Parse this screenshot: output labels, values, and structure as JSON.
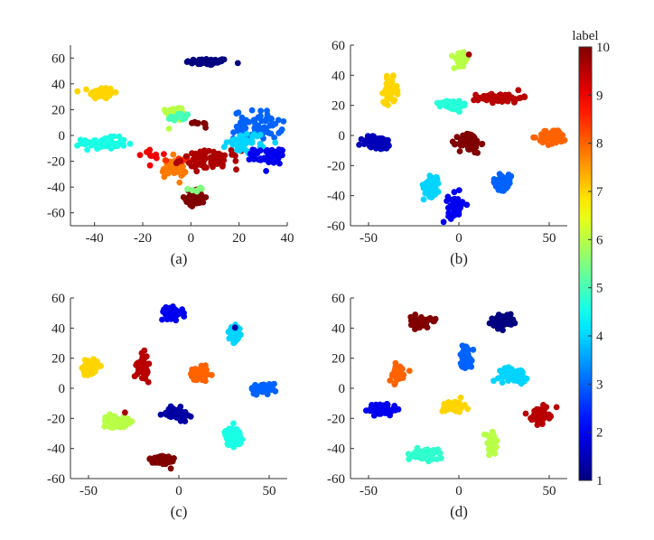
{
  "chart_data": [
    {
      "type": "scatter",
      "caption": "(a)",
      "xlim": [
        -50,
        40
      ],
      "ylim": [
        -70,
        70
      ],
      "xticks": [
        -40,
        -20,
        0,
        20,
        40
      ],
      "yticks": [
        -60,
        -40,
        -20,
        0,
        20,
        40,
        60
      ],
      "clusters": [
        {
          "label": 1,
          "x": 7,
          "y": 57,
          "sx": 4.5,
          "sy": 1.3,
          "n": 70
        },
        {
          "label": 7,
          "x": -37,
          "y": 33,
          "sx": 2.5,
          "sy": 2.4,
          "n": 70
        },
        {
          "label": 6,
          "x": -6,
          "y": 17,
          "sx": 2.0,
          "sy": 2.8,
          "n": 50
        },
        {
          "label": 5,
          "x": -5,
          "y": 14,
          "sx": 2.2,
          "sy": 1.8,
          "n": 25
        },
        {
          "label": 4.6,
          "x": -36,
          "y": -6,
          "sx": 4.5,
          "sy": 2.2,
          "n": 70
        },
        {
          "label": 10,
          "x": 2,
          "y": -48,
          "sx": 2.0,
          "sy": 3.0,
          "n": 60
        },
        {
          "label": 5.5,
          "x": 1,
          "y": -42,
          "sx": 1.5,
          "sy": 0.8,
          "n": 6
        },
        {
          "label": 7.8,
          "x": -7,
          "y": -25,
          "sx": 2.5,
          "sy": 4.0,
          "n": 55
        },
        {
          "label": 8.5,
          "x": -2,
          "y": -19,
          "sx": 4.0,
          "sy": 0.8,
          "n": 20
        },
        {
          "label": 9.6,
          "x": 8,
          "y": -19,
          "sx": 6.0,
          "sy": 3.5,
          "n": 75
        },
        {
          "label": 9.0,
          "x": -17,
          "y": -15,
          "sx": 3.0,
          "sy": 3.0,
          "n": 10
        },
        {
          "label": 3,
          "x": 28,
          "y": 8,
          "sx": 5.0,
          "sy": 5.5,
          "n": 70
        },
        {
          "label": 4,
          "x": 23,
          "y": -5,
          "sx": 4.0,
          "sy": 4.0,
          "n": 45
        },
        {
          "label": 2,
          "x": 33,
          "y": -16,
          "sx": 3.5,
          "sy": 3.0,
          "n": 55
        },
        {
          "label": 10,
          "x": 2,
          "y": 9,
          "sx": 3.0,
          "sy": 1.0,
          "n": 10
        }
      ]
    },
    {
      "type": "scatter",
      "caption": "(b)",
      "xlim": [
        -60,
        60
      ],
      "ylim": [
        -60,
        60
      ],
      "xticks": [
        -50,
        0,
        50
      ],
      "yticks": [
        -60,
        -40,
        -20,
        0,
        20,
        40,
        60
      ],
      "clusters": [
        {
          "label": 6,
          "x": 1,
          "y": 50,
          "sx": 2.0,
          "sy": 2.5,
          "n": 55
        },
        {
          "label": 9.7,
          "x": 5,
          "y": 54,
          "sx": 0.3,
          "sy": 0.3,
          "n": 1
        },
        {
          "label": 7,
          "x": -38,
          "y": 30,
          "sx": 1.8,
          "sy": 4.0,
          "n": 60
        },
        {
          "label": 4.7,
          "x": -3,
          "y": 20,
          "sx": 3.5,
          "sy": 1.6,
          "n": 60
        },
        {
          "label": 9.5,
          "x": 23,
          "y": 25,
          "sx": 6.0,
          "sy": 1.5,
          "n": 70
        },
        {
          "label": 10,
          "x": 6,
          "y": -5,
          "sx": 3.0,
          "sy": 3.5,
          "n": 65
        },
        {
          "label": 1.5,
          "x": -45,
          "y": -5,
          "sx": 4.5,
          "sy": 2.2,
          "n": 65
        },
        {
          "label": 8,
          "x": 52,
          "y": -1,
          "sx": 4.0,
          "sy": 2.5,
          "n": 60
        },
        {
          "label": 4,
          "x": -15,
          "y": -33,
          "sx": 2.2,
          "sy": 4.0,
          "n": 50
        },
        {
          "label": 3,
          "x": 24,
          "y": -31,
          "sx": 2.5,
          "sy": 2.5,
          "n": 60
        },
        {
          "label": 2,
          "x": -2,
          "y": -48,
          "sx": 2.0,
          "sy": 4.5,
          "n": 55
        }
      ]
    },
    {
      "type": "scatter",
      "caption": "(c)",
      "xlim": [
        -60,
        60
      ],
      "ylim": [
        -60,
        60
      ],
      "xticks": [
        -50,
        0,
        50
      ],
      "yticks": [
        -60,
        -40,
        -20,
        0,
        20,
        40,
        60
      ],
      "clusters": [
        {
          "label": 2,
          "x": -4,
          "y": 50,
          "sx": 3.0,
          "sy": 1.8,
          "n": 60
        },
        {
          "label": 4,
          "x": 31,
          "y": 36,
          "sx": 1.6,
          "sy": 2.5,
          "n": 55
        },
        {
          "label": 1.3,
          "x": 31,
          "y": 40,
          "sx": 0.3,
          "sy": 0.3,
          "n": 1
        },
        {
          "label": 7,
          "x": -49,
          "y": 14,
          "sx": 2.3,
          "sy": 3.0,
          "n": 60
        },
        {
          "label": 9.5,
          "x": -20,
          "y": 15,
          "sx": 1.5,
          "sy": 3.8,
          "n": 60
        },
        {
          "label": 8,
          "x": 11,
          "y": 9,
          "sx": 2.5,
          "sy": 2.5,
          "n": 60
        },
        {
          "label": 3,
          "x": 47,
          "y": 0,
          "sx": 3.5,
          "sy": 1.6,
          "n": 55
        },
        {
          "label": 6,
          "x": -35,
          "y": -22,
          "sx": 3.5,
          "sy": 2.0,
          "n": 60
        },
        {
          "label": 9.7,
          "x": -30,
          "y": -16,
          "sx": 0.3,
          "sy": 0.3,
          "n": 1
        },
        {
          "label": 1.3,
          "x": -1,
          "y": -17,
          "sx": 3.0,
          "sy": 2.0,
          "n": 60
        },
        {
          "label": 4.6,
          "x": 30,
          "y": -32,
          "sx": 2.3,
          "sy": 3.0,
          "n": 60
        },
        {
          "label": 10,
          "x": -9,
          "y": -48,
          "sx": 3.5,
          "sy": 2.0,
          "n": 60
        }
      ]
    },
    {
      "type": "scatter",
      "caption": "(d)",
      "xlim": [
        -60,
        60
      ],
      "ylim": [
        -60,
        60
      ],
      "xticks": [
        -50,
        0,
        50
      ],
      "yticks": [
        -60,
        -40,
        -20,
        0,
        20,
        40,
        60
      ],
      "clusters": [
        {
          "label": 10,
          "x": -21,
          "y": 44,
          "sx": 2.8,
          "sy": 1.8,
          "n": 60
        },
        {
          "label": 1,
          "x": 24,
          "y": 45,
          "sx": 3.0,
          "sy": 2.2,
          "n": 60
        },
        {
          "label": 3,
          "x": 4,
          "y": 21,
          "sx": 1.6,
          "sy": 4.0,
          "n": 60
        },
        {
          "label": 8,
          "x": -34,
          "y": 10,
          "sx": 2.4,
          "sy": 2.8,
          "n": 60
        },
        {
          "label": 4,
          "x": 30,
          "y": 9,
          "sx": 4.0,
          "sy": 2.3,
          "n": 55
        },
        {
          "label": 2,
          "x": -42,
          "y": -14,
          "sx": 4.0,
          "sy": 2.0,
          "n": 60
        },
        {
          "label": 7,
          "x": -3,
          "y": -12,
          "sx": 3.0,
          "sy": 2.0,
          "n": 60
        },
        {
          "label": 9.5,
          "x": 45,
          "y": -18,
          "sx": 2.5,
          "sy": 2.5,
          "n": 60
        },
        {
          "label": 6,
          "x": 18,
          "y": -37,
          "sx": 1.8,
          "sy": 4.0,
          "n": 55
        },
        {
          "label": 4.8,
          "x": -18,
          "y": -44,
          "sx": 3.2,
          "sy": 1.8,
          "n": 60
        }
      ]
    }
  ],
  "colorbar": {
    "label": "label",
    "min": 1,
    "max": 10,
    "ticks": [
      1,
      2,
      3,
      4,
      5,
      6,
      7,
      8,
      9,
      10
    ],
    "colormap": "jet"
  }
}
